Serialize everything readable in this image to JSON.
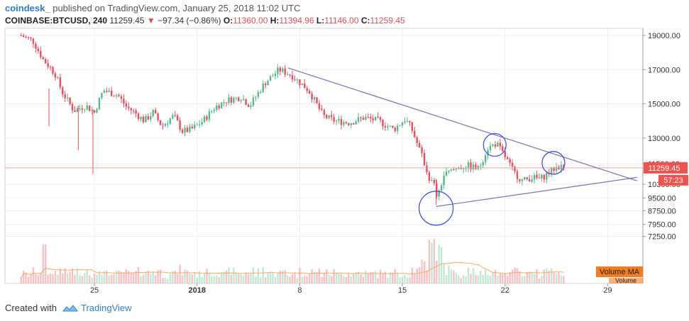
{
  "header": {
    "author": "coindesk_",
    "published": "published on TradingView.com, January 25, 2018 11:02 UTC",
    "symbol": "COINBASE:BTCUSD, 240",
    "last": "11259.45",
    "change": "−97.34 (−0.86%)",
    "o_label": "O:",
    "o_val": "11360.00",
    "h_label": "H:",
    "h_val": "11394.96",
    "l_label": "L:",
    "l_val": "11146.00",
    "c_label": "C:",
    "c_val": "11259.45"
  },
  "footer": {
    "created_with": "Created with",
    "brand": "TradingView"
  },
  "colors": {
    "up": "#53b987",
    "down": "#eb4d5c",
    "trend": "#7b6fb4",
    "circle": "#4a4fe0",
    "ma": "#f5a96b",
    "price_line": "#f0a0a0",
    "price_tag": "#ef5350",
    "timer_tag": "#ef5350",
    "vol_tag": "#f57c20"
  },
  "chart_data": {
    "type": "candlestick",
    "title": "",
    "y_axis": {
      "range": [
        7000,
        19300
      ],
      "ticks": [
        19000,
        17000,
        15000,
        13000,
        11500,
        10300,
        9500,
        8750,
        7950,
        7250
      ]
    },
    "x_axis": {
      "range": [
        20,
        56
      ],
      "ticks": [
        {
          "day": 25,
          "label": "25"
        },
        {
          "day": 32,
          "label": "2018"
        },
        {
          "day": 39,
          "label": "8"
        },
        {
          "day": 46,
          "label": "15"
        },
        {
          "day": 53,
          "label": "22"
        },
        {
          "day": 60,
          "label": "29"
        }
      ]
    },
    "price_path": [
      [
        20.0,
        19000
      ],
      [
        20.8,
        18700
      ],
      [
        21.5,
        17600
      ],
      [
        22.3,
        16800
      ],
      [
        22.8,
        15700
      ],
      [
        23.6,
        14600
      ],
      [
        24.4,
        14900
      ],
      [
        25.0,
        14500
      ],
      [
        25.6,
        15800
      ],
      [
        26.6,
        15500
      ],
      [
        27.2,
        14800
      ],
      [
        27.6,
        14600
      ],
      [
        28.4,
        14000
      ],
      [
        29.0,
        14500
      ],
      [
        29.6,
        13700
      ],
      [
        30.4,
        14300
      ],
      [
        31.0,
        13400
      ],
      [
        31.6,
        13500
      ],
      [
        32.4,
        14000
      ],
      [
        33.2,
        14800
      ],
      [
        34.0,
        15200
      ],
      [
        35.0,
        15400
      ],
      [
        35.6,
        14900
      ],
      [
        36.6,
        16200
      ],
      [
        37.6,
        17000
      ],
      [
        38.4,
        16700
      ],
      [
        39.6,
        15800
      ],
      [
        40.6,
        14300
      ],
      [
        41.4,
        14000
      ],
      [
        42.4,
        13900
      ],
      [
        43.4,
        14200
      ],
      [
        44.4,
        14000
      ],
      [
        45.4,
        13500
      ],
      [
        46.2,
        14100
      ],
      [
        46.6,
        13600
      ],
      [
        47.4,
        11800
      ],
      [
        47.8,
        10700
      ],
      [
        48.2,
        10200
      ],
      [
        48.4,
        9400
      ],
      [
        48.8,
        10800
      ],
      [
        49.6,
        11200
      ],
      [
        50.4,
        11400
      ],
      [
        51.2,
        11200
      ],
      [
        51.8,
        12400
      ],
      [
        52.4,
        12700
      ],
      [
        53.0,
        11900
      ],
      [
        53.6,
        11000
      ],
      [
        54.2,
        10500
      ],
      [
        54.8,
        10700
      ],
      [
        55.4,
        10600
      ],
      [
        56.0,
        11000
      ],
      [
        56.6,
        11350
      ],
      [
        57.0,
        11259
      ]
    ],
    "wicks": [
      {
        "day": 21.9,
        "low": 13700,
        "high": 15900
      },
      {
        "day": 23.9,
        "low": 12300,
        "high": 14900
      },
      {
        "day": 24.9,
        "low": 10900,
        "high": 14700
      },
      {
        "day": 48.3,
        "low": 9100,
        "high": 10600
      }
    ],
    "trendlines": [
      {
        "from": [
          38.2,
          17100
        ],
        "to": [
          62.0,
          10500
        ]
      },
      {
        "from": [
          48.3,
          9000
        ],
        "to": [
          62.0,
          10700
        ]
      }
    ],
    "circles": [
      {
        "day": 48.3,
        "price": 8900
      },
      {
        "day": 52.3,
        "price": 12600
      },
      {
        "day": 56.3,
        "price": 11550
      }
    ],
    "current": {
      "price": 11259.45,
      "label": "11259.45",
      "timer": "57:23"
    },
    "volume": {
      "label": "Volume MA",
      "series_label": "Volume",
      "max_fraction_days": [
        [
          21.6,
          0.55
        ],
        [
          48.0,
          0.5
        ],
        [
          48.6,
          0.45
        ]
      ]
    }
  }
}
